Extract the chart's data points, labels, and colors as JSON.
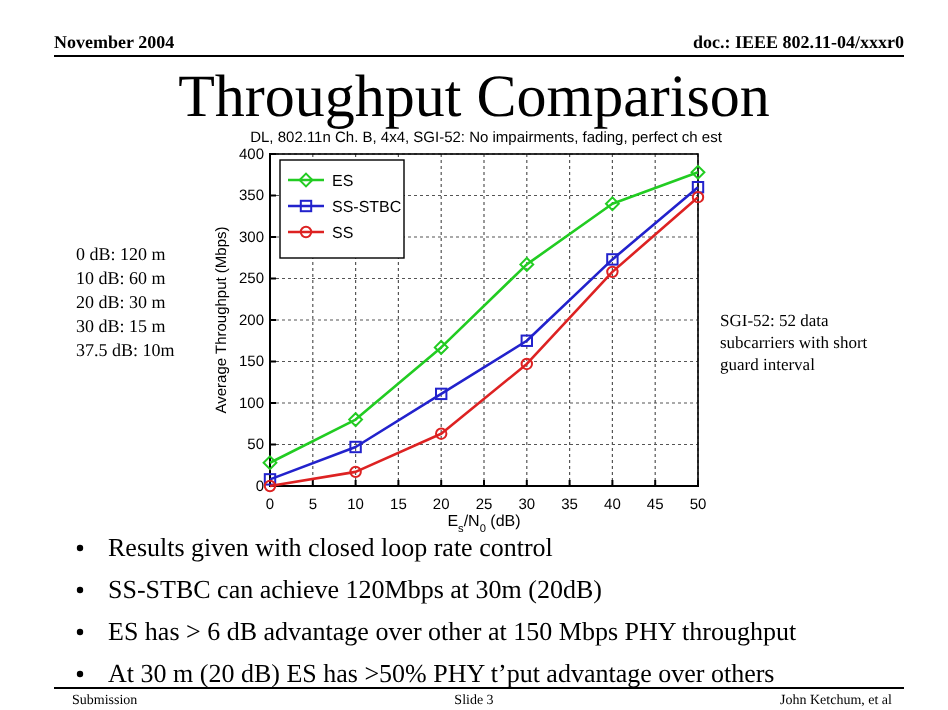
{
  "chart_data": {
    "type": "line",
    "title": "Throughput Comparison",
    "subtitle": "DL, 802.11n Ch. B, 4x4, SGI-52: No impairments, fading, perfect ch est",
    "xlabel": "E$_{s}$/N$_{0}$ (dB)",
    "ylabel": "Average Throughput (Mbps)",
    "x": [
      0,
      10,
      20,
      30,
      40,
      50
    ],
    "series": [
      {
        "name": "ES",
        "color": "#22cc22",
        "marker": "diamond",
        "values": [
          28,
          80,
          167,
          267,
          340,
          378
        ]
      },
      {
        "name": "SS-STBC",
        "color": "#2222cc",
        "marker": "square",
        "values": [
          8,
          47,
          111,
          175,
          273,
          360
        ]
      },
      {
        "name": "SS",
        "color": "#dd2222",
        "marker": "circle",
        "values": [
          0,
          17,
          63,
          147,
          258,
          348
        ]
      }
    ],
    "xlim": [
      0,
      50
    ],
    "xticks": [
      0,
      5,
      10,
      15,
      20,
      25,
      30,
      35,
      40,
      45,
      50
    ],
    "ylim": [
      0,
      400
    ],
    "yticks": [
      0,
      50,
      100,
      150,
      200,
      250,
      300,
      350,
      400
    ],
    "grid": true,
    "legend": "top left",
    "line_style": "solid",
    "annotations": [
      "November 2004",
      "doc.: IEEE 802.11-04/xxxr0",
      "0 dB:  120 m",
      "10 dB:  60 m",
      "20 dB:  30 m",
      "30 dB:  15 m",
      "37.5 dB:  10m",
      "SGI-52: 52 data",
      "subcarriers with short",
      "guard interval",
      "Results given with closed loop rate control",
      "SS-STBC can achieve 120Mbps at 30m (20dB)",
      "ES has > 6 dB advantage over other at 150 Mbps PHY throughput",
      "At 30 m (20 dB) ES has >50% PHY t’put advantage over others",
      "Submission",
      "Slide 3",
      "John Ketchum, et al"
    ]
  }
}
